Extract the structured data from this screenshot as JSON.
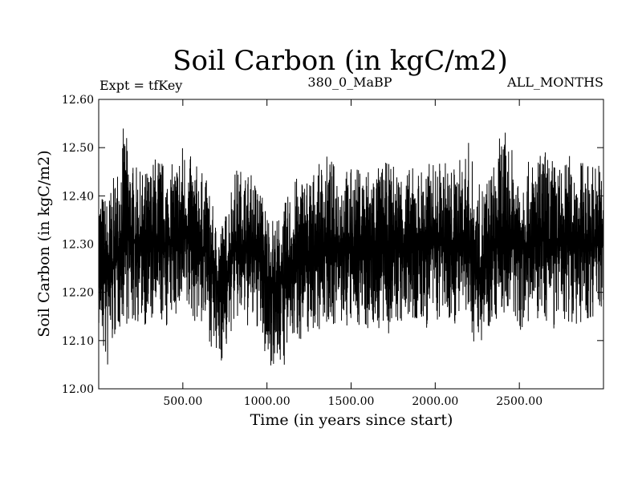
{
  "chart_data": {
    "type": "line",
    "title": "Soil Carbon (in kgC/m2)",
    "subtitle_left": "Expt = tfKey",
    "subtitle_center": "380_0_MaBP",
    "subtitle_right": "ALL_MONTHS",
    "xlabel": "Time (in years since start)",
    "ylabel": "Soil Carbon (in kgC/m2)",
    "xlim": [
      0,
      3000
    ],
    "ylim": [
      12.0,
      12.6
    ],
    "x_ticks": [
      500,
      1000,
      1500,
      2000,
      2500
    ],
    "x_tick_labels": [
      "500.00",
      "1000.00",
      "1500.00",
      "2000.00",
      "2500.00"
    ],
    "y_ticks": [
      12.0,
      12.1,
      12.2,
      12.3,
      12.4,
      12.5,
      12.6
    ],
    "y_tick_labels": [
      "12.00",
      "12.10",
      "12.20",
      "12.30",
      "12.40",
      "12.50",
      "12.60"
    ],
    "grid": false,
    "line_color": "#000000",
    "series": [
      {
        "x": [
          0,
          50,
          100,
          150,
          200,
          250,
          300,
          350,
          400,
          450,
          500,
          550,
          600,
          650,
          700,
          750,
          800,
          850,
          900,
          950,
          1000,
          1050,
          1100,
          1150,
          1200,
          1250,
          1300,
          1350,
          1400,
          1450,
          1500,
          1550,
          1600,
          1650,
          1700,
          1750,
          1800,
          1850,
          1900,
          1950,
          2000,
          2050,
          2100,
          2150,
          2200,
          2250,
          2300,
          2350,
          2400,
          2450,
          2500,
          2550,
          2600,
          2650,
          2700,
          2750,
          2800,
          2850,
          2900,
          2950,
          3000
        ],
        "y_mean": [
          12.27,
          12.24,
          12.27,
          12.33,
          12.31,
          12.3,
          12.3,
          12.3,
          12.3,
          12.31,
          12.32,
          12.31,
          12.3,
          12.28,
          12.22,
          12.22,
          12.29,
          12.3,
          12.29,
          12.28,
          12.22,
          12.22,
          12.22,
          12.26,
          12.27,
          12.28,
          12.29,
          12.3,
          12.3,
          12.3,
          12.29,
          12.3,
          12.3,
          12.3,
          12.3,
          12.3,
          12.3,
          12.3,
          12.3,
          12.3,
          12.3,
          12.3,
          12.3,
          12.3,
          12.3,
          12.24,
          12.26,
          12.3,
          12.31,
          12.31,
          12.3,
          12.3,
          12.31,
          12.31,
          12.3,
          12.3,
          12.3,
          12.3,
          12.3,
          12.3,
          12.3
        ],
        "y_max": [
          12.42,
          12.4,
          12.45,
          12.55,
          12.47,
          12.45,
          12.46,
          12.5,
          12.46,
          12.47,
          12.52,
          12.48,
          12.46,
          12.43,
          12.34,
          12.36,
          12.46,
          12.46,
          12.45,
          12.43,
          12.38,
          12.35,
          12.38,
          12.43,
          12.45,
          12.45,
          12.46,
          12.49,
          12.47,
          12.46,
          12.46,
          12.46,
          12.47,
          12.46,
          12.47,
          12.47,
          12.46,
          12.46,
          12.46,
          12.47,
          12.47,
          12.48,
          12.46,
          12.48,
          12.52,
          12.42,
          12.44,
          12.47,
          12.55,
          12.5,
          12.48,
          12.47,
          12.48,
          12.5,
          12.48,
          12.46,
          12.49,
          12.48,
          12.47,
          12.48,
          12.47
        ],
        "y_min": [
          12.12,
          12.02,
          12.1,
          12.14,
          12.12,
          12.14,
          12.12,
          12.14,
          12.12,
          12.15,
          12.14,
          12.14,
          12.13,
          12.11,
          12.04,
          12.06,
          12.13,
          12.13,
          12.12,
          12.12,
          12.04,
          12.05,
          12.04,
          12.09,
          12.1,
          12.11,
          12.12,
          12.13,
          12.13,
          12.12,
          12.12,
          12.13,
          12.12,
          12.12,
          12.1,
          12.12,
          12.13,
          12.13,
          12.12,
          12.12,
          12.13,
          12.14,
          12.13,
          12.14,
          12.12,
          12.08,
          12.12,
          12.14,
          12.15,
          12.14,
          12.12,
          12.12,
          12.13,
          12.14,
          12.12,
          12.12,
          12.14,
          12.13,
          12.13,
          12.15,
          12.15
        ]
      }
    ]
  }
}
